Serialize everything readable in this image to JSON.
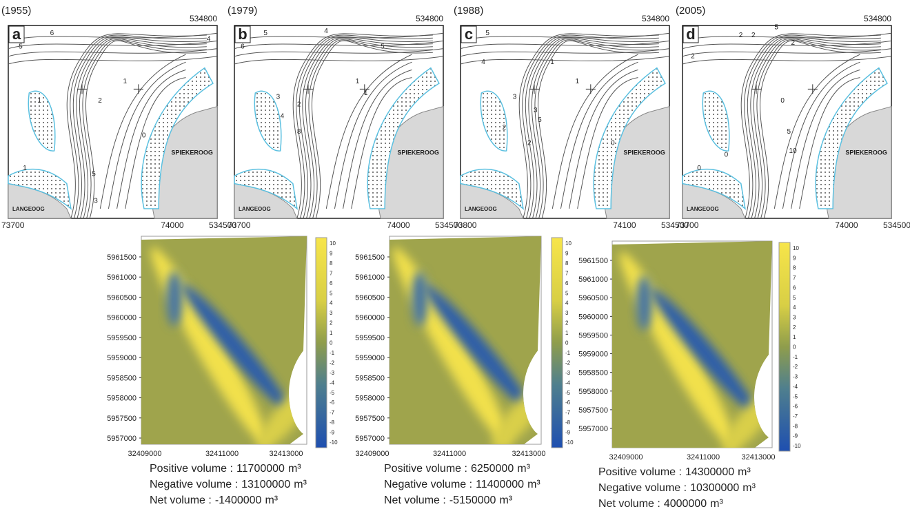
{
  "panels": [
    {
      "year": "(1955)",
      "letter": "a",
      "coord_top_right": 534800,
      "coord_bottom_right": 534500,
      "x_labels": [
        73700,
        74000
      ],
      "island_east": "SPIEKEROOG",
      "island_west": "LANGEOOG",
      "contour_labels": [
        "6",
        "5",
        "4",
        "2",
        "1",
        "1",
        "0",
        "5",
        "3",
        "1"
      ]
    },
    {
      "year": "(1979)",
      "letter": "b",
      "coord_top_right": 534800,
      "coord_bottom_right": 534500,
      "x_labels": [
        73700,
        74000
      ],
      "island_east": "SPIEKEROOG",
      "island_west": "LANGEOOG",
      "contour_labels": [
        "6",
        "5",
        "4",
        "3",
        "2",
        "4",
        "8",
        "1",
        "1",
        "5"
      ]
    },
    {
      "year": "(1988)",
      "letter": "c",
      "coord_top_right": 534800,
      "coord_bottom_right": 534500,
      "x_labels": [
        73800,
        74100
      ],
      "island_east": "SPIEKEROOG",
      "island_west": "LANGEOOG",
      "contour_labels": [
        "5",
        "4",
        "3",
        "5",
        "2",
        "1",
        "2",
        "3",
        "1",
        "0"
      ]
    },
    {
      "year": "(2005)",
      "letter": "d",
      "coord_top_right": 534800,
      "coord_bottom_right": 534500,
      "x_labels": [
        73700,
        74000
      ],
      "island_east": "SPIEKEROOG",
      "island_west": "LANGEOOG",
      "contour_labels": [
        "5",
        "2",
        "2",
        "2",
        "2",
        "0",
        "0",
        "5",
        "10",
        "0"
      ]
    }
  ],
  "difference_maps": [
    {
      "positive_volume": 11700000,
      "negative_volume": 13100000,
      "net_volume": -1400000
    },
    {
      "positive_volume": 6250000,
      "negative_volume": 11400000,
      "net_volume": -5150000
    },
    {
      "positive_volume": 14300000,
      "negative_volume": 10300000,
      "net_volume": 4000000
    }
  ],
  "y_ticks": [
    5961500,
    5961000,
    5960500,
    5960000,
    5959500,
    5959000,
    5958500,
    5958000,
    5957500,
    5957000
  ],
  "x_ticks": [
    32409000,
    32411000,
    32413000
  ],
  "colorbar_ticks": [
    10,
    9,
    8,
    7,
    6,
    5,
    4,
    3,
    2,
    1,
    0,
    -1,
    -2,
    -3,
    -4,
    -5,
    -6,
    -7,
    -8,
    -9,
    -10
  ],
  "volume_labels": {
    "positive": "Positive volume :",
    "negative": "Negative volume :",
    "net": "Net volume :",
    "unit": "m³"
  }
}
